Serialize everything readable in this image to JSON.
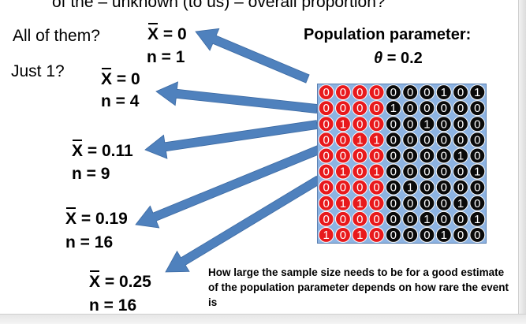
{
  "heading_partial": "of the – unknown (to us) – overall proportion?",
  "questions": {
    "all": "All of them?",
    "one": "Just 1?"
  },
  "population": {
    "label": "Population parameter:",
    "theta": "θ",
    "value_text": "= 0.2"
  },
  "samples": [
    {
      "xbar": "X",
      "eq": "= 0",
      "n": "n = 1"
    },
    {
      "xbar": "X",
      "eq": "= 0",
      "n": "n = 4"
    },
    {
      "xbar": "X",
      "eq": "= 0.11",
      "n": "n = 9"
    },
    {
      "xbar": "X",
      "eq": "= 0.19",
      "n": "n = 16"
    },
    {
      "xbar": "X",
      "eq": "= 0.25",
      "n": "n = 16"
    }
  ],
  "grid": {
    "rows": [
      "0000000101",
      "0000100000",
      "0100001000",
      "0011000000",
      "0000000010",
      "0101000001",
      "0000010000",
      "0110000010",
      "0000001001",
      "1010000100"
    ],
    "red_columns": 4,
    "colors": {
      "red": "#e8191c",
      "black": "#0a0a0a",
      "text": "#ffffff",
      "background": "#8db3e2"
    }
  },
  "note": "How large the sample size needs to be for a good estimate of the population parameter depends on how rare the event is",
  "arrow_color": "#4f81bd"
}
